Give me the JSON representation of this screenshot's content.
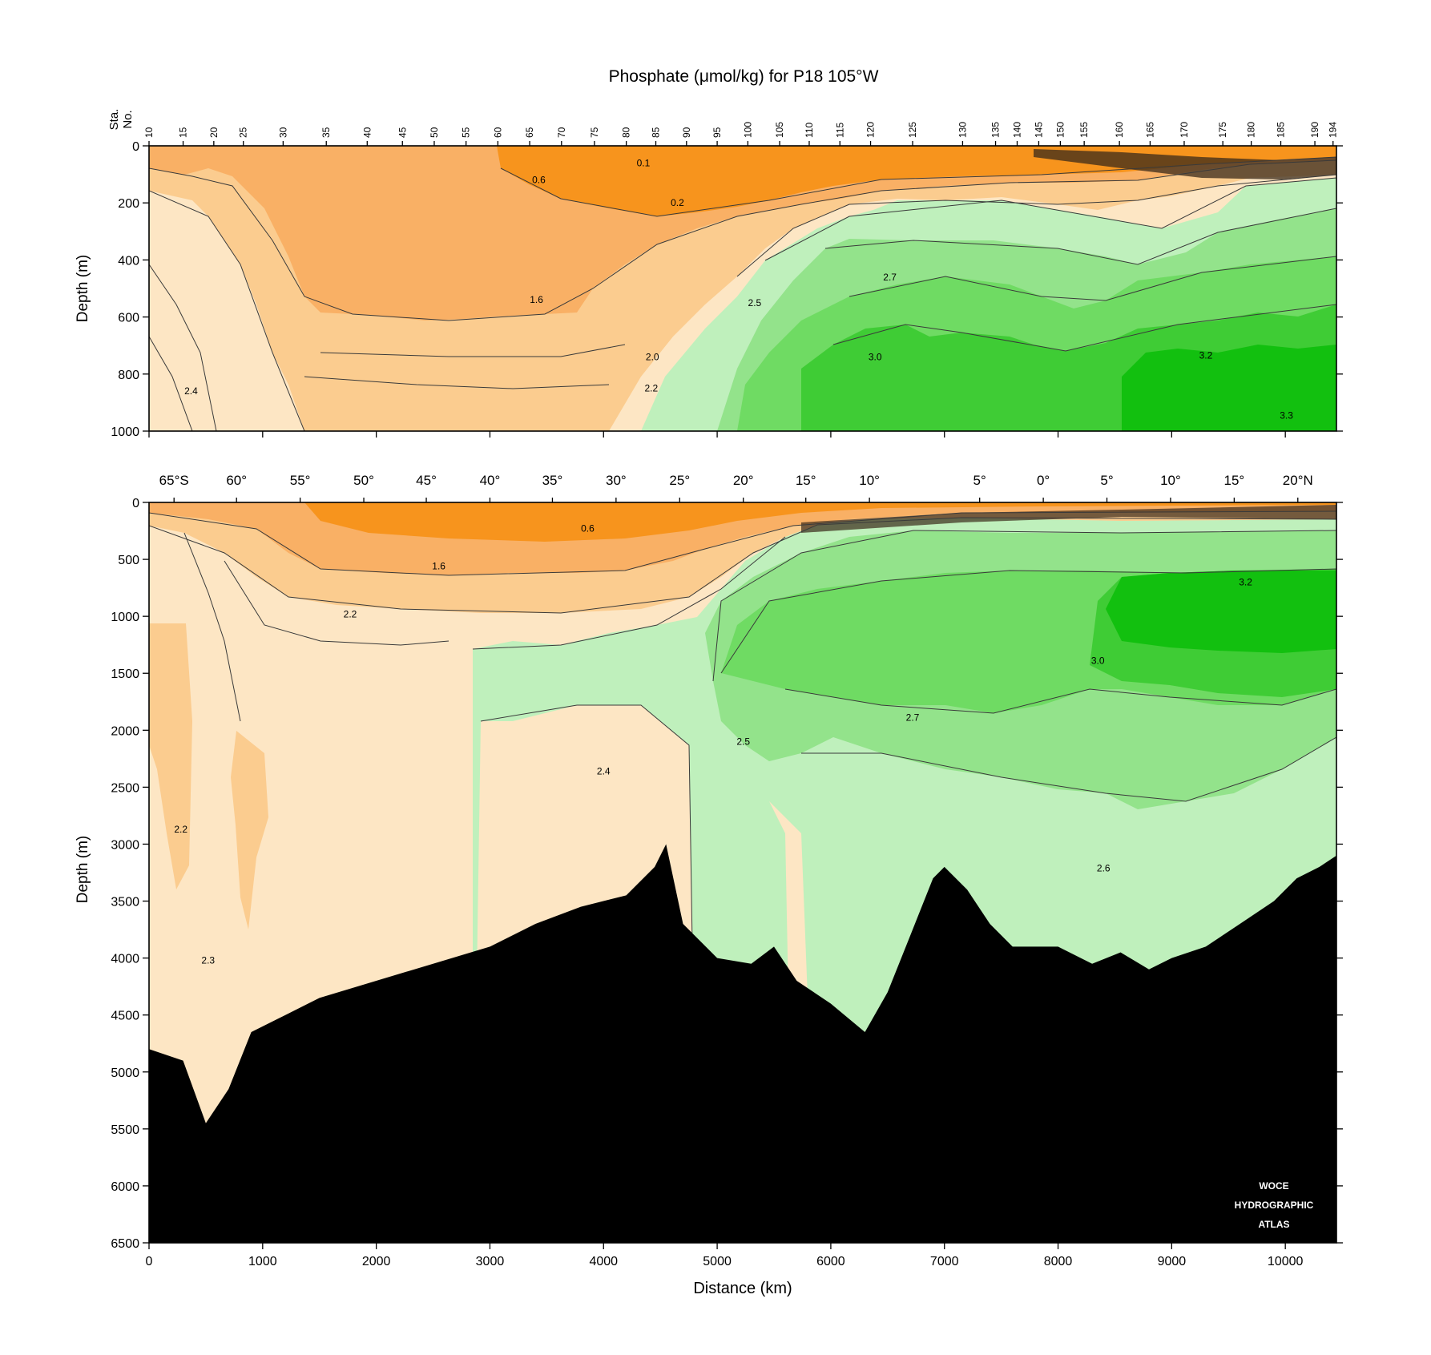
{
  "chart_data": {
    "type": "contour_section",
    "title": "Phosphate (μmol/kg) for P18 105°W",
    "colors": {
      "orange_dark": "#f7941d",
      "orange_mid": "#f9b065",
      "orange_light": "#fbcc8f",
      "peach": "#fde6c4",
      "green_pale": "#bff0bc",
      "green_light": "#93e38b",
      "green_mid": "#6fdb63",
      "green_strong": "#3fcc35",
      "green_dark": "#12c00f",
      "bottom": "#000000"
    },
    "station_axis": {
      "label_line1": "Sta.",
      "label_line2": "No.",
      "ticks": [
        {
          "label": "10",
          "km": 0
        },
        {
          "label": "15",
          "km": 300
        },
        {
          "label": "20",
          "km": 570
        },
        {
          "label": "25",
          "km": 830
        },
        {
          "label": "30",
          "km": 1180
        },
        {
          "label": "35",
          "km": 1560
        },
        {
          "label": "40",
          "km": 1920
        },
        {
          "label": "45",
          "km": 2230
        },
        {
          "label": "50",
          "km": 2510
        },
        {
          "label": "55",
          "km": 2790
        },
        {
          "label": "60",
          "km": 3070
        },
        {
          "label": "65",
          "km": 3350
        },
        {
          "label": "70",
          "km": 3630
        },
        {
          "label": "75",
          "km": 3920
        },
        {
          "label": "80",
          "km": 4200
        },
        {
          "label": "85",
          "km": 4460
        },
        {
          "label": "90",
          "km": 4730
        },
        {
          "label": "95",
          "km": 5000
        },
        {
          "label": "100",
          "km": 5270
        },
        {
          "label": "105",
          "km": 5550
        },
        {
          "label": "110",
          "km": 5810
        },
        {
          "label": "115",
          "km": 6080
        },
        {
          "label": "120",
          "km": 6350
        },
        {
          "label": "125",
          "km": 6720
        },
        {
          "label": "130",
          "km": 7160
        },
        {
          "label": "135",
          "km": 7450
        },
        {
          "label": "140",
          "km": 7640
        },
        {
          "label": "145",
          "km": 7830
        },
        {
          "label": "150",
          "km": 8020
        },
        {
          "label": "155",
          "km": 8230
        },
        {
          "label": "160",
          "km": 8540
        },
        {
          "label": "165",
          "km": 8810
        },
        {
          "label": "170",
          "km": 9110
        },
        {
          "label": "175",
          "km": 9450
        },
        {
          "label": "180",
          "km": 9700
        },
        {
          "label": "185",
          "km": 9960
        },
        {
          "label": "190",
          "km": 10260
        },
        {
          "label": "194",
          "km": 10420
        }
      ]
    },
    "latitude_axis": {
      "ticks": [
        {
          "label": "65°S",
          "km": 220
        },
        {
          "label": "60°",
          "km": 770
        },
        {
          "label": "55°",
          "km": 1330
        },
        {
          "label": "50°",
          "km": 1890
        },
        {
          "label": "45°",
          "km": 2440
        },
        {
          "label": "40°",
          "km": 3000
        },
        {
          "label": "35°",
          "km": 3550
        },
        {
          "label": "30°",
          "km": 4110
        },
        {
          "label": "25°",
          "km": 4670
        },
        {
          "label": "20°",
          "km": 5230
        },
        {
          "label": "15°",
          "km": 5780
        },
        {
          "label": "10°",
          "km": 6340
        },
        {
          "label": "5°",
          "km": 7310
        },
        {
          "label": "0°",
          "km": 7870
        },
        {
          "label": "5°",
          "km": 8430
        },
        {
          "label": "10°",
          "km": 8990
        },
        {
          "label": "15°",
          "km": 9550
        },
        {
          "label": "20°N",
          "km": 10110
        }
      ]
    },
    "x_axis": {
      "label": "Distance (km)",
      "range": [
        0,
        10450
      ],
      "ticks": [
        0,
        1000,
        2000,
        3000,
        4000,
        5000,
        6000,
        7000,
        8000,
        9000,
        10000
      ]
    },
    "top_panel": {
      "ylabel": "Depth (m)",
      "ylim": [
        0,
        1000
      ],
      "yticks": [
        0,
        200,
        400,
        600,
        800,
        1000
      ],
      "labels": [
        {
          "text": "0.1",
          "km": 4350,
          "depth": 60
        },
        {
          "text": "0.6",
          "km": 3430,
          "depth": 120
        },
        {
          "text": "0.2",
          "km": 4650,
          "depth": 200
        },
        {
          "text": "1.6",
          "km": 3410,
          "depth": 540
        },
        {
          "text": "2.7",
          "km": 6520,
          "depth": 460
        },
        {
          "text": "2.5",
          "km": 5330,
          "depth": 550
        },
        {
          "text": "2.0",
          "km": 4430,
          "depth": 740
        },
        {
          "text": "3.0",
          "km": 6390,
          "depth": 740
        },
        {
          "text": "3.2",
          "km": 9300,
          "depth": 735
        },
        {
          "text": "2.2",
          "km": 4420,
          "depth": 850
        },
        {
          "text": "2.4",
          "km": 370,
          "depth": 860
        },
        {
          "text": "3.3",
          "km": 10010,
          "depth": 945
        }
      ]
    },
    "bottom_panel": {
      "ylabel": "Depth (m)",
      "ylim": [
        0,
        6500
      ],
      "yticks": [
        0,
        500,
        1000,
        1500,
        2000,
        2500,
        3000,
        3500,
        4000,
        4500,
        5000,
        5500,
        6000,
        6500
      ],
      "labels": [
        {
          "text": "0.6",
          "km": 3860,
          "depth": 230
        },
        {
          "text": "1.6",
          "km": 2550,
          "depth": 560
        },
        {
          "text": "3.2",
          "km": 9650,
          "depth": 700
        },
        {
          "text": "2.2",
          "km": 1770,
          "depth": 980
        },
        {
          "text": "3.0",
          "km": 8350,
          "depth": 1390
        },
        {
          "text": "2.7",
          "km": 6720,
          "depth": 1890
        },
        {
          "text": "2.5",
          "km": 5230,
          "depth": 2100
        },
        {
          "text": "2.4",
          "km": 4000,
          "depth": 2360
        },
        {
          "text": "2.2",
          "km": 280,
          "depth": 2870
        },
        {
          "text": "2.6",
          "km": 8400,
          "depth": 3210
        },
        {
          "text": "2.3",
          "km": 520,
          "depth": 4020
        }
      ],
      "bathymetry": [
        [
          0,
          4800
        ],
        [
          300,
          4900
        ],
        [
          500,
          5450
        ],
        [
          700,
          5150
        ],
        [
          900,
          4650
        ],
        [
          1200,
          4500
        ],
        [
          1500,
          4350
        ],
        [
          2000,
          4200
        ],
        [
          2500,
          4050
        ],
        [
          3000,
          3900
        ],
        [
          3400,
          3700
        ],
        [
          3800,
          3550
        ],
        [
          4200,
          3450
        ],
        [
          4450,
          3200
        ],
        [
          4550,
          3000
        ],
        [
          4700,
          3700
        ],
        [
          5000,
          4000
        ],
        [
          5300,
          4050
        ],
        [
          5500,
          3900
        ],
        [
          5700,
          4200
        ],
        [
          6000,
          4400
        ],
        [
          6300,
          4650
        ],
        [
          6500,
          4300
        ],
        [
          6700,
          3800
        ],
        [
          6900,
          3300
        ],
        [
          7000,
          3200
        ],
        [
          7200,
          3400
        ],
        [
          7400,
          3700
        ],
        [
          7600,
          3900
        ],
        [
          8000,
          3900
        ],
        [
          8300,
          4050
        ],
        [
          8550,
          3950
        ],
        [
          8800,
          4100
        ],
        [
          9000,
          4000
        ],
        [
          9300,
          3900
        ],
        [
          9600,
          3700
        ],
        [
          9900,
          3500
        ],
        [
          10100,
          3300
        ],
        [
          10300,
          3200
        ],
        [
          10450,
          3100
        ]
      ]
    },
    "watermark": [
      "WOCE",
      "HYDROGRAPHIC",
      "ATLAS"
    ]
  }
}
